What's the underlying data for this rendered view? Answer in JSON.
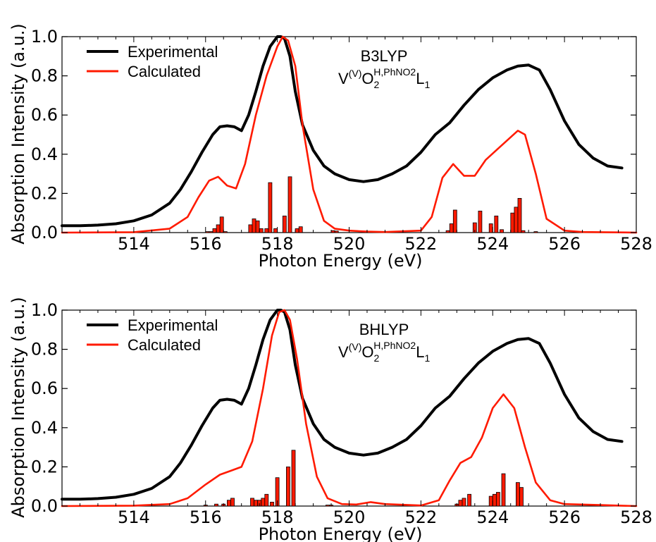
{
  "ylabel": "Absorption Intensity (a.u.)",
  "chart_data": [
    {
      "type": "line",
      "xlabel": "Photon Energy (eV)",
      "ylabel": "Absorption Intensity (a.u.)",
      "xlim": [
        512,
        528
      ],
      "ylim": [
        0,
        1.0
      ],
      "xticks": [
        "514",
        "516",
        "518",
        "520",
        "522",
        "524",
        "526",
        "528"
      ],
      "yticks": [
        "0.0",
        "0.2",
        "0.4",
        "0.6",
        "0.8",
        "1.0"
      ],
      "legend": {
        "position": "top-left",
        "entries": [
          "Experimental",
          "Calculated"
        ]
      },
      "annotation": {
        "method": "B3LYP",
        "formula_main": "V",
        "formula_sup1": "(V)",
        "formula_o": "O",
        "formula_sub1": "2",
        "formula_sup2": "H,PhNO2",
        "formula_l": "L",
        "formula_sub2": "1"
      },
      "series": [
        {
          "name": "Experimental",
          "color": "#000000",
          "x": [
            512,
            512.5,
            513,
            513.5,
            514,
            514.5,
            515,
            515.3,
            515.6,
            515.9,
            516.2,
            516.4,
            516.6,
            516.8,
            517,
            517.2,
            517.4,
            517.6,
            517.8,
            518,
            518.1,
            518.2,
            518.35,
            518.5,
            518.7,
            519,
            519.3,
            519.6,
            520,
            520.4,
            520.8,
            521.2,
            521.6,
            522,
            522.4,
            522.8,
            523.2,
            523.6,
            524,
            524.4,
            524.7,
            525,
            525.3,
            525.6,
            526,
            526.4,
            526.8,
            527.2,
            527.6
          ],
          "y": [
            0.035,
            0.035,
            0.038,
            0.045,
            0.06,
            0.09,
            0.15,
            0.22,
            0.31,
            0.41,
            0.5,
            0.54,
            0.545,
            0.54,
            0.52,
            0.6,
            0.72,
            0.85,
            0.95,
            1.0,
            1.0,
            0.99,
            0.9,
            0.72,
            0.55,
            0.42,
            0.34,
            0.3,
            0.27,
            0.26,
            0.27,
            0.3,
            0.34,
            0.41,
            0.5,
            0.56,
            0.65,
            0.73,
            0.79,
            0.83,
            0.85,
            0.855,
            0.83,
            0.73,
            0.57,
            0.45,
            0.38,
            0.34,
            0.33
          ]
        },
        {
          "name": "Calculated",
          "color": "#ff1a00",
          "x": [
            512,
            514,
            515,
            515.5,
            515.8,
            516.1,
            516.35,
            516.6,
            516.85,
            517.1,
            517.4,
            517.7,
            518,
            518.15,
            518.3,
            518.5,
            518.7,
            519,
            519.3,
            519.6,
            520,
            520.5,
            521,
            522,
            522.3,
            522.6,
            522.9,
            523.2,
            523.5,
            523.8,
            524.1,
            524.4,
            524.7,
            524.9,
            525.2,
            525.5,
            526,
            526.5,
            527,
            528
          ],
          "y": [
            0,
            0.002,
            0.02,
            0.08,
            0.18,
            0.265,
            0.285,
            0.24,
            0.225,
            0.35,
            0.6,
            0.8,
            0.95,
            1.0,
            0.98,
            0.85,
            0.55,
            0.22,
            0.06,
            0.02,
            0.01,
            0.005,
            0.003,
            0.01,
            0.08,
            0.28,
            0.35,
            0.29,
            0.29,
            0.37,
            0.42,
            0.47,
            0.52,
            0.5,
            0.3,
            0.07,
            0.01,
            0.003,
            0.002,
            0
          ]
        }
      ],
      "stick_spectrum": {
        "color": "#ff1a00",
        "x": [
          516.05,
          516.15,
          516.25,
          516.35,
          516.45,
          516.55,
          517.25,
          517.35,
          517.45,
          517.55,
          517.7,
          517.8,
          517.95,
          518.2,
          518.35,
          518.55,
          518.65,
          519.55,
          519.65,
          522.75,
          522.85,
          522.95,
          523.5,
          523.65,
          523.95,
          524.1,
          524.25,
          524.55,
          524.65,
          524.75,
          524.85,
          525.2
        ],
        "y": [
          0.005,
          0.005,
          0.02,
          0.04,
          0.08,
          0.005,
          0.04,
          0.07,
          0.06,
          0.02,
          0.02,
          0.255,
          0.02,
          0.085,
          0.285,
          0.02,
          0.03,
          0.01,
          0.008,
          0.01,
          0.045,
          0.115,
          0.05,
          0.11,
          0.045,
          0.085,
          0.015,
          0.1,
          0.13,
          0.175,
          0.01,
          0.005
        ]
      }
    },
    {
      "type": "line",
      "xlabel": "Photon Energy (eV)",
      "ylabel": "Absorption Intensity (a.u.)",
      "xlim": [
        512,
        528
      ],
      "ylim": [
        0,
        1.0
      ],
      "xticks": [
        "514",
        "516",
        "518",
        "520",
        "522",
        "524",
        "526",
        "528"
      ],
      "yticks": [
        "0.0",
        "0.2",
        "0.4",
        "0.6",
        "0.8",
        "1.0"
      ],
      "legend": {
        "position": "top-left",
        "entries": [
          "Experimental",
          "Calculated"
        ]
      },
      "annotation": {
        "method": "BHLYP",
        "formula_main": "V",
        "formula_sup1": "(V)",
        "formula_o": "O",
        "formula_sub1": "2",
        "formula_sup2": "H,PhNO2",
        "formula_l": "L",
        "formula_sub2": "1"
      },
      "series": [
        {
          "name": "Experimental",
          "color": "#000000",
          "x": [
            512,
            512.5,
            513,
            513.5,
            514,
            514.5,
            515,
            515.3,
            515.6,
            515.9,
            516.2,
            516.4,
            516.6,
            516.8,
            517,
            517.2,
            517.4,
            517.6,
            517.8,
            518,
            518.1,
            518.2,
            518.35,
            518.5,
            518.7,
            519,
            519.3,
            519.6,
            520,
            520.4,
            520.8,
            521.2,
            521.6,
            522,
            522.4,
            522.8,
            523.2,
            523.6,
            524,
            524.4,
            524.7,
            525,
            525.3,
            525.6,
            526,
            526.4,
            526.8,
            527.2,
            527.6
          ],
          "y": [
            0.035,
            0.035,
            0.038,
            0.045,
            0.06,
            0.09,
            0.15,
            0.22,
            0.31,
            0.41,
            0.5,
            0.54,
            0.545,
            0.54,
            0.52,
            0.6,
            0.72,
            0.85,
            0.95,
            1.0,
            1.0,
            0.99,
            0.9,
            0.72,
            0.55,
            0.42,
            0.34,
            0.3,
            0.27,
            0.26,
            0.27,
            0.3,
            0.34,
            0.41,
            0.5,
            0.56,
            0.65,
            0.73,
            0.79,
            0.83,
            0.85,
            0.855,
            0.83,
            0.73,
            0.57,
            0.45,
            0.38,
            0.34,
            0.33
          ]
        },
        {
          "name": "Calculated",
          "color": "#ff1a00",
          "x": [
            512,
            514,
            515,
            515.5,
            516,
            516.4,
            516.7,
            517,
            517.3,
            517.6,
            517.85,
            518.05,
            518.2,
            518.35,
            518.55,
            518.8,
            519.1,
            519.4,
            519.8,
            520.2,
            520.6,
            521,
            522,
            522.5,
            522.8,
            523.1,
            523.4,
            523.7,
            524,
            524.3,
            524.6,
            524.9,
            525.2,
            525.6,
            526,
            527,
            528
          ],
          "y": [
            0,
            0.002,
            0.01,
            0.04,
            0.11,
            0.16,
            0.18,
            0.2,
            0.33,
            0.6,
            0.87,
            0.99,
            1.0,
            0.95,
            0.75,
            0.42,
            0.15,
            0.04,
            0.01,
            0.008,
            0.02,
            0.01,
            0.003,
            0.03,
            0.13,
            0.22,
            0.25,
            0.35,
            0.5,
            0.57,
            0.5,
            0.3,
            0.12,
            0.03,
            0.01,
            0.005,
            0
          ]
        }
      ],
      "stick_spectrum": {
        "color": "#ff1a00",
        "x": [
          516.0,
          516.3,
          516.5,
          516.65,
          516.75,
          517.3,
          517.4,
          517.5,
          517.6,
          517.7,
          517.85,
          518.0,
          518.3,
          518.45,
          519.4,
          519.5,
          523.0,
          523.1,
          523.2,
          523.35,
          523.95,
          524.05,
          524.15,
          524.3,
          524.7,
          524.8
        ],
        "y": [
          0.005,
          0.01,
          0.01,
          0.03,
          0.04,
          0.04,
          0.03,
          0.03,
          0.04,
          0.06,
          0.02,
          0.145,
          0.2,
          0.285,
          0.005,
          0.005,
          0.01,
          0.03,
          0.04,
          0.06,
          0.05,
          0.06,
          0.07,
          0.165,
          0.12,
          0.095
        ]
      }
    }
  ]
}
